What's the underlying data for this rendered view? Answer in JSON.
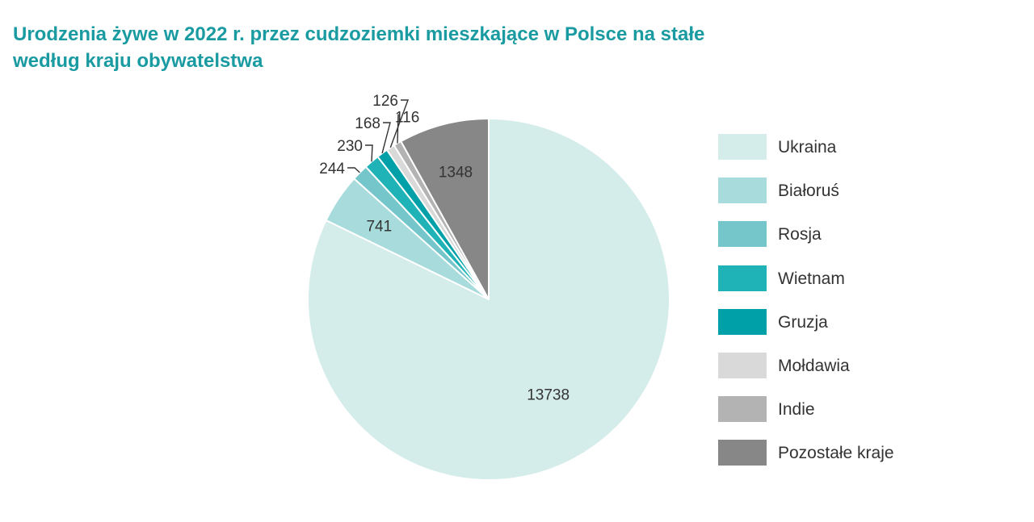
{
  "chart_data": {
    "type": "pie",
    "title_lines": [
      "Urodzenia żywe w 2022 r. przez cudzoziemki mieszkające w Polsce na stałe",
      "według kraju obywatelstwa"
    ],
    "series": [
      {
        "name": "Ukraina",
        "value": 13738,
        "label": "13738",
        "color": "#d4ecea"
      },
      {
        "name": "Białoruś",
        "value": 741,
        "label": "741",
        "color": "#a8dbdb"
      },
      {
        "name": "Rosja",
        "value": 244,
        "label": "244",
        "color": "#75c6cb"
      },
      {
        "name": "Wietnam",
        "value": 230,
        "label": "230",
        "color": "#1fb3b8"
      },
      {
        "name": "Gruzja",
        "value": 168,
        "label": "168",
        "color": "#00a0a8"
      },
      {
        "name": "Mołdawia",
        "value": 126,
        "label": "126",
        "color": "#d9d9d9"
      },
      {
        "name": "Indie",
        "value": 116,
        "label": "116",
        "color": "#b3b3b3"
      },
      {
        "name": "Pozostałe kraje",
        "value": 1348,
        "label": "1348",
        "color": "#878787"
      }
    ],
    "legend_position": "right"
  }
}
